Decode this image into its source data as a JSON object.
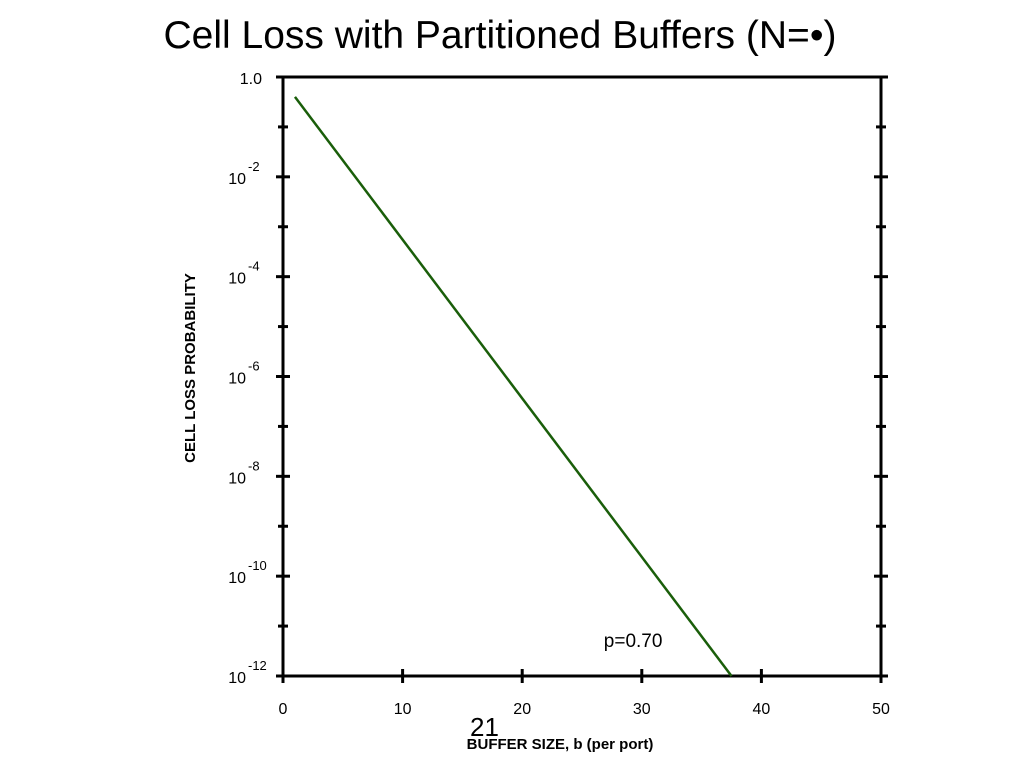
{
  "slide": {
    "title": "Cell Loss with Partitioned Buffers (N=",
    "title_symbol": "•)",
    "page_number": "21"
  },
  "chart_data": {
    "type": "line",
    "title": "",
    "xlabel": "BUFFER SIZE, b (per port)",
    "ylabel": "CELL LOSS PROBABILITY",
    "xlim": [
      0,
      50
    ],
    "ylim_log10": [
      -12,
      0
    ],
    "y_scale": "log",
    "x_ticks": [
      {
        "value": 0,
        "label": "0"
      },
      {
        "value": 10,
        "label": "10"
      },
      {
        "value": 20,
        "label": "20"
      },
      {
        "value": 30,
        "label": "30"
      },
      {
        "value": 40,
        "label": "40"
      },
      {
        "value": 50,
        "label": "50"
      }
    ],
    "y_ticks": [
      {
        "value": 1,
        "base": "1.0",
        "exp": ""
      },
      {
        "value": 0.01,
        "base": "10",
        "exp": "-2"
      },
      {
        "value": 0.0001,
        "base": "10",
        "exp": "-4"
      },
      {
        "value": 1e-06,
        "base": "10",
        "exp": "-6"
      },
      {
        "value": 1e-08,
        "base": "10",
        "exp": "-8"
      },
      {
        "value": 1e-10,
        "base": "10",
        "exp": "-10"
      },
      {
        "value": 1e-12,
        "base": "10",
        "exp": "-12"
      }
    ],
    "grid": false,
    "series": [
      {
        "name": "p=0.70",
        "color": "#1a5e0a",
        "points": [
          {
            "x": 1,
            "y": 0.4
          },
          {
            "x": 37.5,
            "y": 1e-12
          }
        ]
      }
    ],
    "annotations": [
      {
        "text": "p=0.70",
        "x": 30,
        "y": 2e-12
      }
    ]
  }
}
